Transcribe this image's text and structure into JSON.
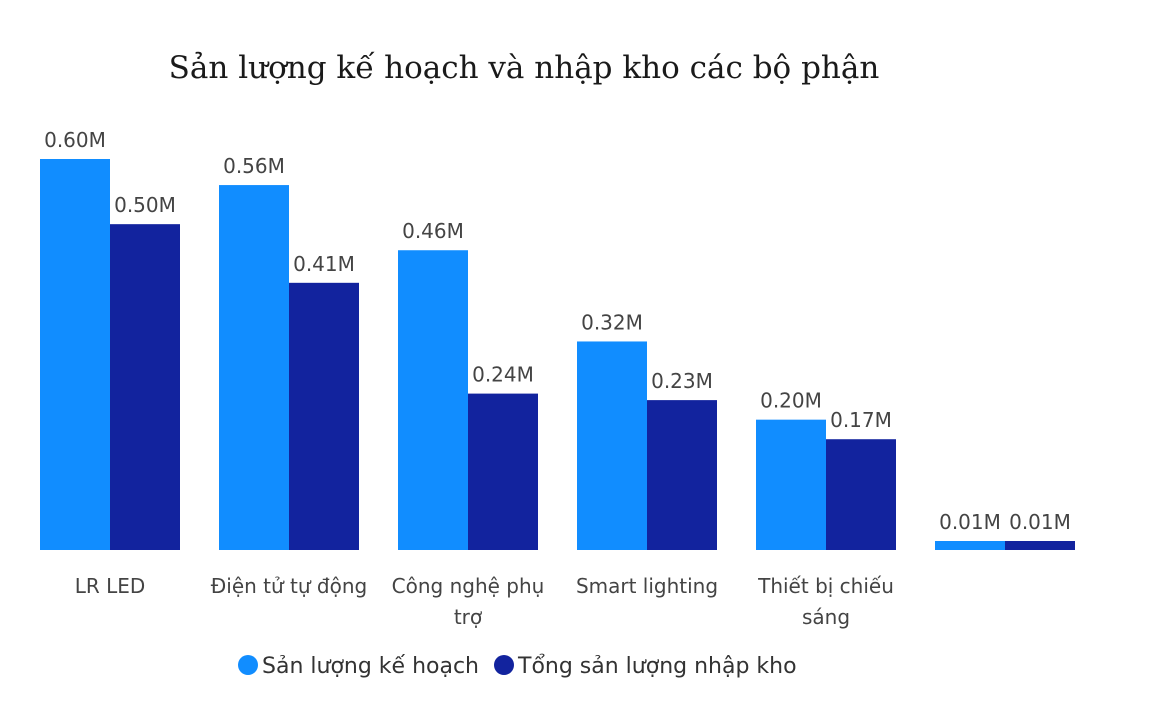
{
  "chart_data": {
    "type": "bar",
    "title": "Sản lượng kế hoạch và nhập kho các bộ phận",
    "xlabel": "",
    "ylabel": "",
    "ylim": [
      0,
      0.6
    ],
    "grid": false,
    "legend_position": "bottom",
    "categories": [
      [
        "LR LED"
      ],
      [
        "Điện tử tự động"
      ],
      [
        "Công nghệ phụ",
        "trợ"
      ],
      [
        "Smart lighting"
      ],
      [
        "Thiết bị chiếu",
        "sáng"
      ],
      [
        ""
      ]
    ],
    "series": [
      {
        "name": "Sản lượng kế hoạch",
        "color": "#118DFF",
        "values": [
          0.6,
          0.56,
          0.46,
          0.32,
          0.2,
          0.01
        ],
        "labels": [
          "0.60M",
          "0.56M",
          "0.46M",
          "0.32M",
          "0.20M",
          "0.01M"
        ]
      },
      {
        "name": "Tổng sản lượng nhập kho",
        "color": "#12239E",
        "values": [
          0.5,
          0.41,
          0.24,
          0.23,
          0.17,
          0.01
        ],
        "labels": [
          "0.50M",
          "0.41M",
          "0.24M",
          "0.23M",
          "0.17M",
          "0.01M"
        ]
      }
    ]
  }
}
